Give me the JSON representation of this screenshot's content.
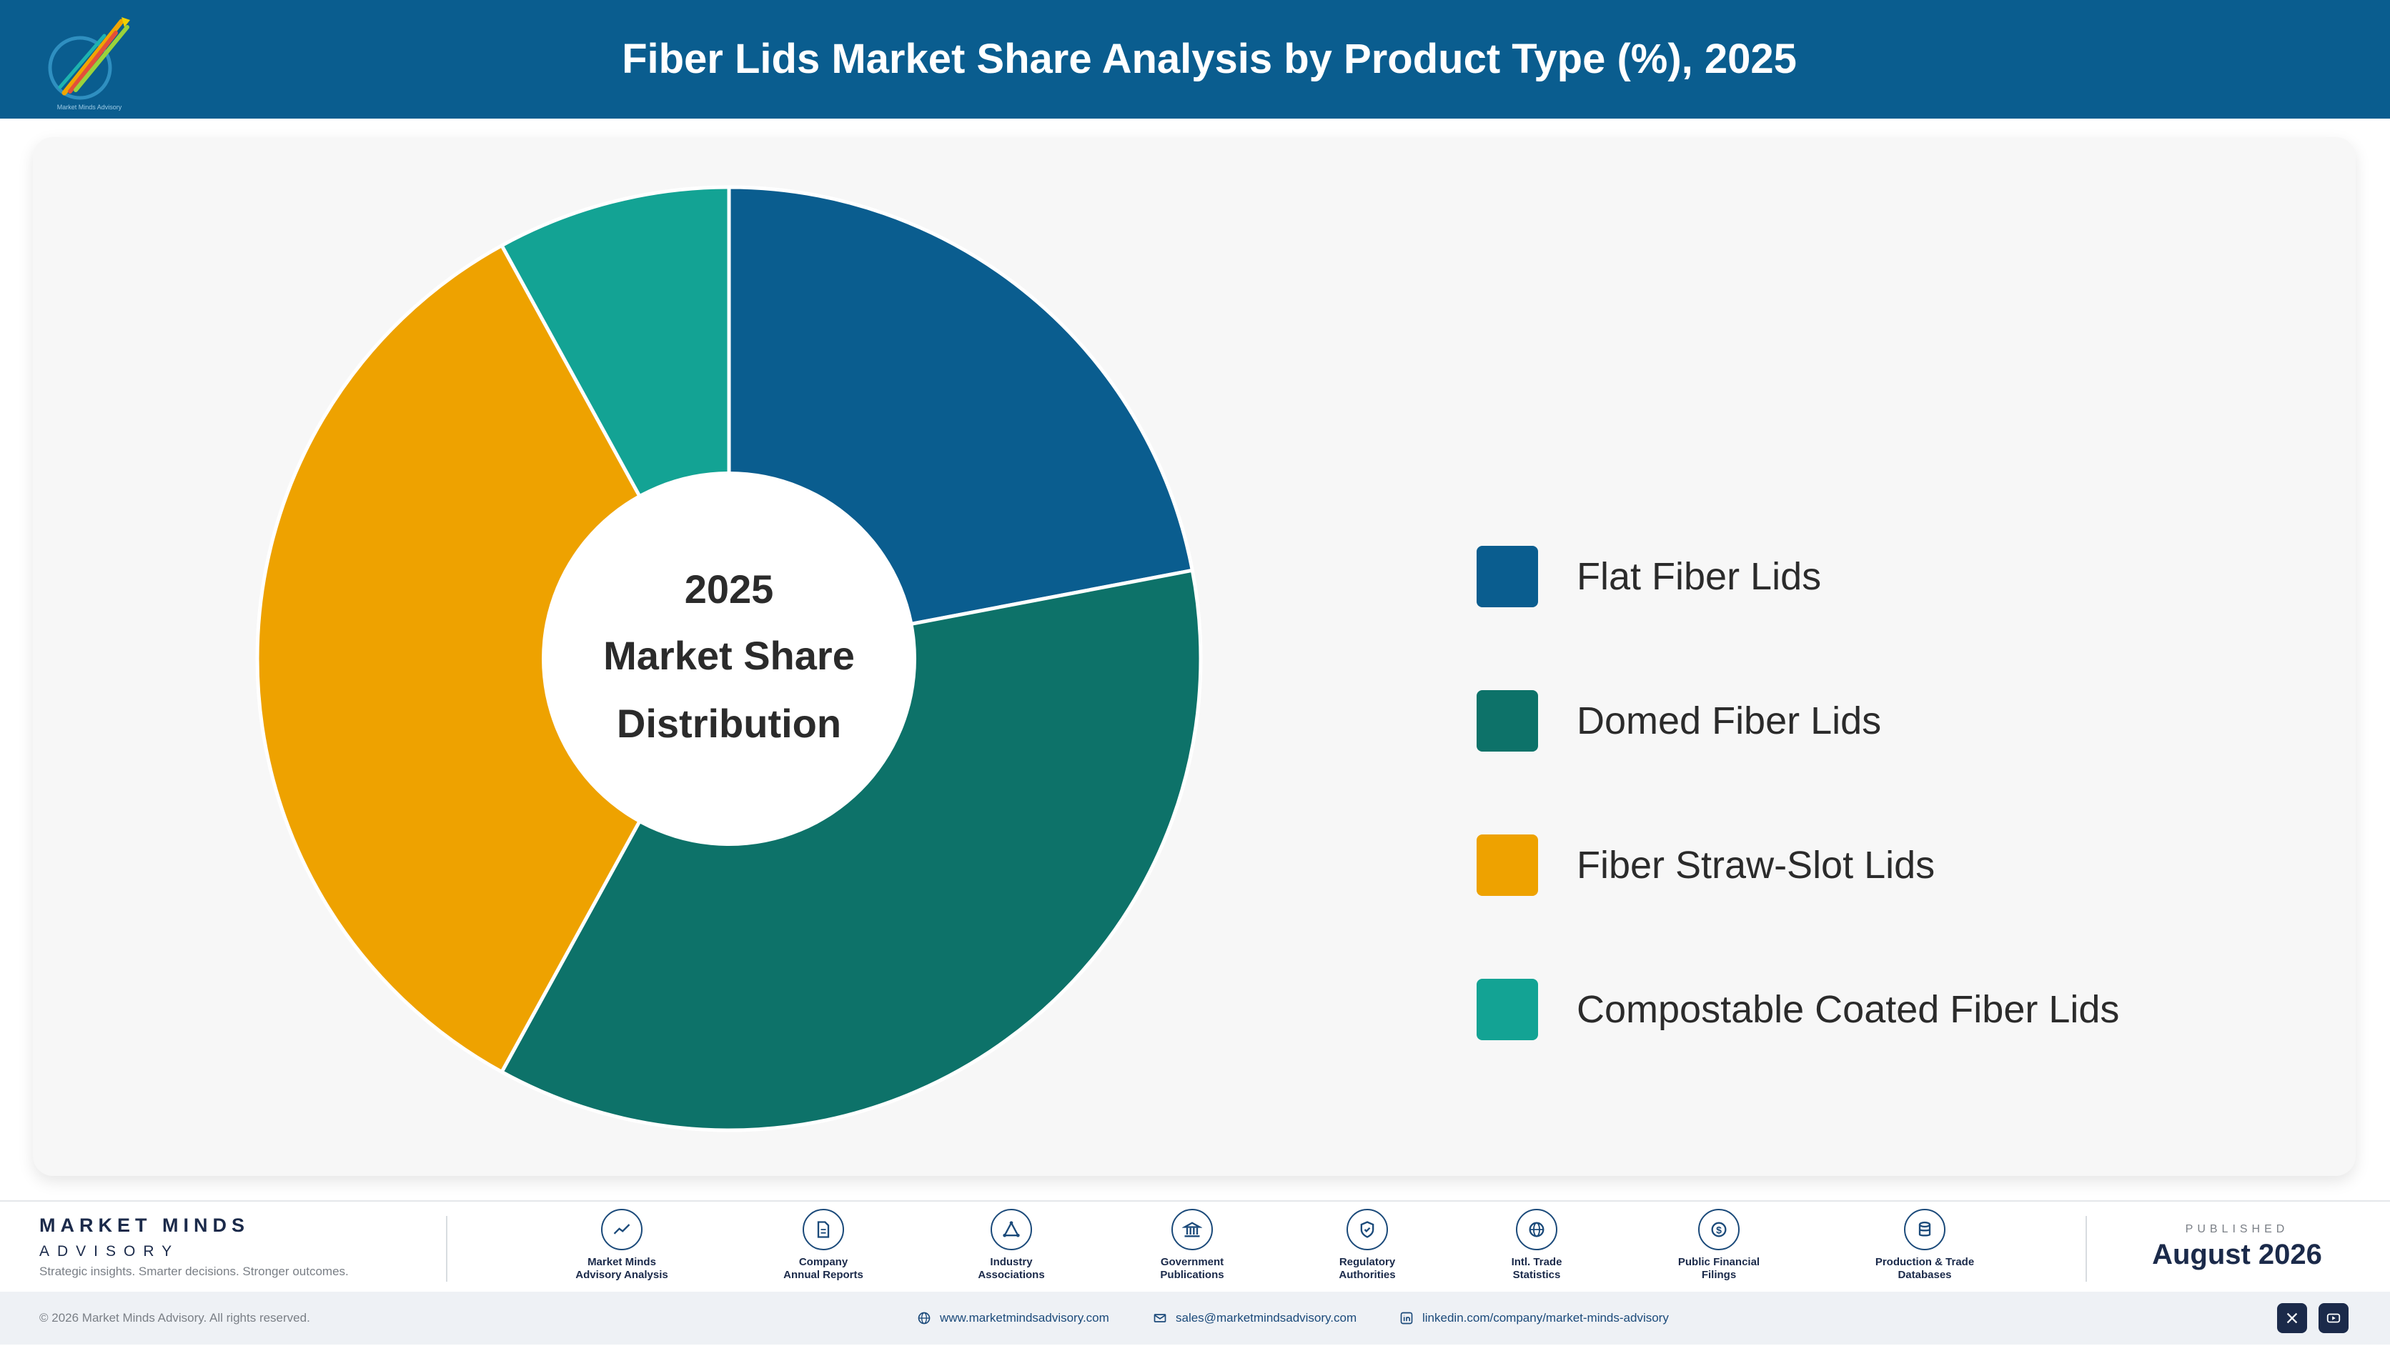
{
  "header": {
    "title": "Fiber Lids Market Share Analysis by Product Type (%), 2025"
  },
  "chart_data": {
    "type": "pie",
    "title": "Fiber Lids Market Share Analysis by Product Type (%), 2025",
    "center_label": [
      "2025",
      "Market Share",
      "Distribution"
    ],
    "categories": [
      "Flat Fiber Lids",
      "Domed Fiber Lids",
      "Fiber Straw-Slot Lids",
      "Compostable Coated Fiber Lids"
    ],
    "values": [
      22.0,
      36.0,
      34.0,
      8.0
    ],
    "colors": [
      "#0a5d8f",
      "#0d7269",
      "#eea200",
      "#13a394"
    ],
    "legend_position": "right"
  },
  "footer": {
    "brand_name": "MARKET MINDS",
    "brand_sub": "ADVISORY",
    "tagline": "Strategic insights. Smarter decisions. Stronger outcomes.",
    "sources": [
      {
        "label": "Market Minds\nAdvisory Analysis",
        "icon": "trend-chart-icon"
      },
      {
        "label": "Company\nAnnual Reports",
        "icon": "document-icon"
      },
      {
        "label": "Industry\nAssociations",
        "icon": "network-icon"
      },
      {
        "label": "Government\nPublications",
        "icon": "government-building-icon"
      },
      {
        "label": "Regulatory\nAuthorities",
        "icon": "shield-icon"
      },
      {
        "label": "Intl. Trade\nStatistics",
        "icon": "globe-icon"
      },
      {
        "label": "Public Financial\nFilings",
        "icon": "currency-icon"
      },
      {
        "label": "Production & Trade\nDatabases",
        "icon": "database-icon"
      }
    ],
    "published_label": "PUBLISHED",
    "published_date": "August 2026",
    "copyright": "© 2026 Market Minds Advisory. All rights reserved.",
    "website": "www.marketmindsadvisory.com",
    "email": "sales@marketmindsadvisory.com",
    "linkedin": "linkedin.com/company/market-minds-advisory"
  }
}
